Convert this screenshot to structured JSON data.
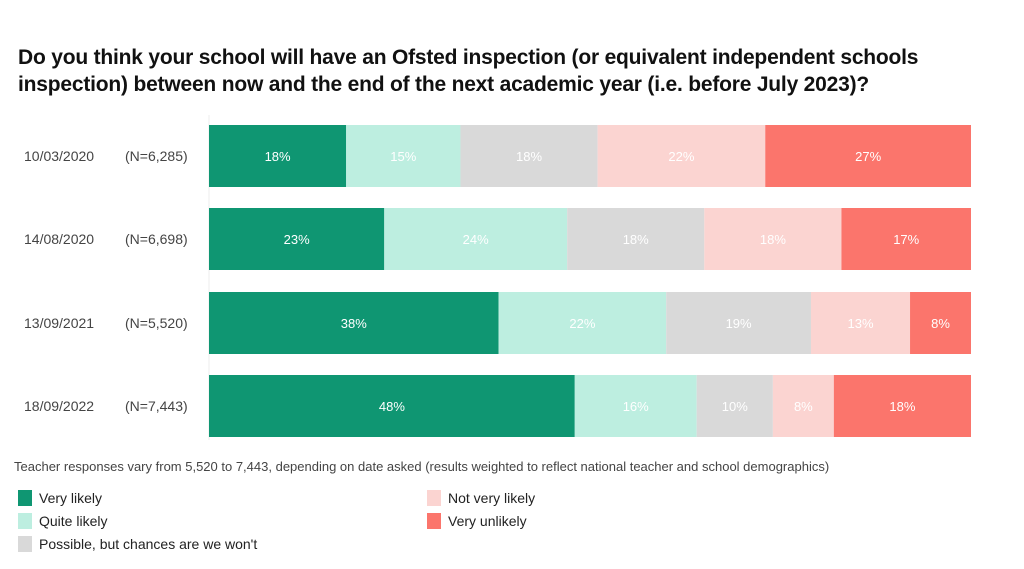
{
  "chart_data": {
    "type": "bar",
    "orientation": "horizontal-stacked-100",
    "title": "Do you think your school will have an Ofsted inspection (or equivalent independent schools inspection) between now and the end of the next academic year (i.e. before July 2023)?",
    "categories": [
      "10/03/2020",
      "14/08/2020",
      "13/09/2021",
      "18/09/2022"
    ],
    "sample_sizes": [
      "(N=6,285)",
      "(N=6,698)",
      "(N=5,520)",
      "(N=7,443)"
    ],
    "series": [
      {
        "name": "Very likely",
        "color": "#0f9672",
        "label_color": "#ffffff",
        "values": [
          18,
          23,
          38,
          48
        ]
      },
      {
        "name": "Quite likely",
        "color": "#bdeee0",
        "label_color": "#ffffff",
        "values": [
          15,
          24,
          22,
          16
        ]
      },
      {
        "name": "Possible, but chances are we won't",
        "color": "#d9d9d9",
        "label_color": "#ffffff",
        "values": [
          18,
          18,
          19,
          10
        ]
      },
      {
        "name": "Not very likely",
        "color": "#fbd4d1",
        "label_color": "#ffffff",
        "values": [
          22,
          18,
          13,
          8
        ]
      },
      {
        "name": "Very unlikely",
        "color": "#fb756c",
        "label_color": "#ffffff",
        "values": [
          27,
          17,
          8,
          18
        ]
      }
    ],
    "value_suffix": "%",
    "note": "Teacher responses vary from 5,520 to 7,443, depending on date asked (results weighted to reflect national teacher and school demographics)",
    "legend_placement": "bottom-left",
    "grid": false
  }
}
